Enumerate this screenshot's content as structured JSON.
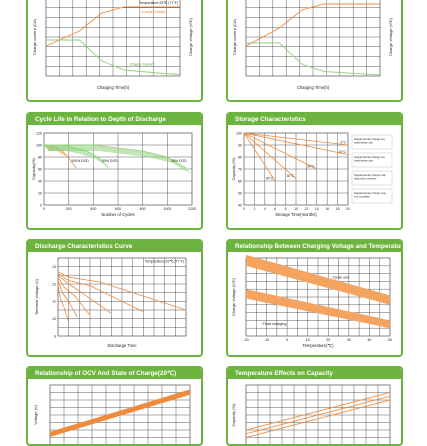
{
  "colors": {
    "panel_green": "#6db33f",
    "orange": "#f08a3c",
    "orange_band": "#f4a460",
    "green_band": "#8fd17a",
    "grid": "#333333",
    "header_text": "#ffffff"
  },
  "panels": [
    {
      "id": "charge-left",
      "title": "",
      "axis": {
        "x_label": "Charging Time(h)",
        "y_label": "Charge current (CA)",
        "y2_label": "Charge Voltage (V/C)"
      },
      "annotations": [
        "Temperature:25℃ (77°F)",
        "Charge Voltage",
        "Charge Current"
      ]
    },
    {
      "id": "charge-right",
      "title": "",
      "axis": {
        "x_label": "Charging Time(h)",
        "y_label": "Charge current (CA)",
        "y2_label": "Charge Voltage (V/C)"
      },
      "annotations": [
        "Temperature:25℃ (77°F)"
      ]
    },
    {
      "id": "cycle-life",
      "title": "Cycle Life in Relation to Depth of Discharge",
      "axis": {
        "x_label": "Number of Cycles",
        "y_label": "Capacity(%)"
      },
      "annotations": [
        "100% DOD",
        "50% DOD",
        "30% DOD"
      ]
    },
    {
      "id": "storage",
      "title": "Storage Characteristics",
      "axis": {
        "x_label": "Storage Time(months)",
        "y_label": "Capacity (%)"
      },
      "annotations": [
        "0°C",
        "10°C",
        "20°C",
        "30°C",
        "40°C"
      ],
      "notes": [
        "Supplementary charge required before use.",
        "Supplementary charge required before use.",
        "Supplementary charge may often fail to recover.",
        "Supplementary charge must be complete."
      ]
    },
    {
      "id": "discharge",
      "title": "Discharge Characteristics Curve",
      "axis": {
        "x_label": "Discharge Time",
        "y_label": "Terminal Voltage (V)"
      },
      "annotations": [
        "Temperature:25℃ (77°F)"
      ]
    },
    {
      "id": "charge-voltage-temp",
      "title": "Relationship Between Charging Voltage and Temperature",
      "axis": {
        "x_label": "Temperature(℃)",
        "y_label": "Charge Voltage (V/C)"
      },
      "annotations": [
        "Cycle use",
        "Float charging"
      ]
    },
    {
      "id": "ocv",
      "title": "Relationship of OCV And State of Charge(20℃)",
      "axis": {
        "x_label": "",
        "y_label": "Voltage (V)"
      },
      "annotations": []
    },
    {
      "id": "temp-capacity",
      "title": "Temperature Effects on Capacity",
      "axis": {
        "x_label": "",
        "y_label": "Capacity (%)"
      },
      "annotations": []
    }
  ],
  "chart_data": [
    {
      "type": "line",
      "id": "charge-left",
      "series": [
        {
          "name": "Charge Voltage",
          "x": [
            0,
            3,
            5,
            7,
            10,
            12
          ],
          "y": [
            1.0,
            1.5,
            2.1,
            2.3,
            2.3,
            2.3
          ]
        },
        {
          "name": "Charge Current",
          "x": [
            0,
            3,
            5,
            7,
            10,
            12
          ],
          "y": [
            1.2,
            1.2,
            0.5,
            0.2,
            0.1,
            0.05
          ]
        }
      ],
      "xlabel": "Charging Time(h)",
      "ylabel": "Charge current (CA)"
    },
    {
      "type": "line",
      "id": "charge-right",
      "series": [
        {
          "x": [
            0,
            3,
            5,
            7,
            10,
            12
          ],
          "y": [
            1.0,
            1.6,
            2.2,
            2.4,
            2.4,
            2.4
          ]
        },
        {
          "x": [
            0,
            3,
            5,
            7,
            10,
            12
          ],
          "y": [
            1.1,
            1.1,
            0.4,
            0.15,
            0.08,
            0.04
          ]
        }
      ],
      "xlabel": "Charging Time(h)",
      "ylabel": "Charge current (CA)"
    },
    {
      "type": "line",
      "id": "cycle-life",
      "x_ticks": [
        0,
        200,
        400,
        600,
        800,
        1000,
        1200
      ],
      "y_ticks": [
        0,
        20,
        40,
        60,
        80,
        100,
        120
      ],
      "xlim": [
        0,
        1200
      ],
      "ylim": [
        0,
        120
      ],
      "series": [
        {
          "name": "100% DOD",
          "x": [
            0,
            60,
            150,
            200,
            260
          ],
          "y": [
            100,
            100,
            90,
            78,
            62
          ]
        },
        {
          "name": "50% DOD",
          "x": [
            0,
            150,
            350,
            450,
            520
          ],
          "y": [
            100,
            100,
            90,
            78,
            62
          ]
        },
        {
          "name": "30% DOD",
          "x": [
            0,
            400,
            800,
            1000,
            1150
          ],
          "y": [
            100,
            100,
            90,
            80,
            62
          ]
        }
      ]
    },
    {
      "type": "line",
      "id": "storage",
      "x_ticks": [
        0,
        2,
        4,
        6,
        8,
        10,
        12,
        14,
        16,
        18,
        20
      ],
      "y_ticks": [
        40,
        50,
        60,
        70,
        80,
        90,
        100
      ],
      "xlim": [
        0,
        20
      ],
      "ylim": [
        40,
        100
      ],
      "series": [
        {
          "name": "0°C",
          "x": [
            0,
            20
          ],
          "y": [
            100,
            90
          ]
        },
        {
          "name": "10°C",
          "x": [
            0,
            20
          ],
          "y": [
            100,
            82
          ]
        },
        {
          "name": "20°C",
          "x": [
            0,
            14
          ],
          "y": [
            100,
            70
          ]
        },
        {
          "name": "30°C",
          "x": [
            0,
            10
          ],
          "y": [
            100,
            62
          ]
        },
        {
          "name": "40°C",
          "x": [
            0,
            6
          ],
          "y": [
            100,
            60
          ]
        }
      ]
    },
    {
      "type": "line",
      "id": "discharge",
      "y_ticks": [
        9,
        10,
        11,
        12,
        13
      ],
      "ylim": [
        9,
        13.5
      ],
      "series": [
        {
          "x": [
            0,
            5,
            20,
            60
          ],
          "y": [
            12.7,
            12.4,
            12.1,
            10.5
          ]
        },
        {
          "x": [
            0,
            5,
            15,
            40
          ],
          "y": [
            12.6,
            12.2,
            11.9,
            10.4
          ]
        },
        {
          "x": [
            0,
            5,
            10,
            25
          ],
          "y": [
            12.5,
            12.0,
            11.6,
            10.3
          ]
        },
        {
          "x": [
            0,
            3,
            8,
            15
          ],
          "y": [
            12.4,
            11.8,
            11.3,
            10.2
          ]
        },
        {
          "x": [
            0,
            2,
            5,
            9
          ],
          "y": [
            12.2,
            11.5,
            11.0,
            10.1
          ]
        },
        {
          "x": [
            0,
            1,
            3,
            5
          ],
          "y": [
            12.0,
            11.2,
            10.6,
            9.8
          ]
        }
      ]
    },
    {
      "type": "area",
      "id": "charge-voltage-temp",
      "x_ticks": [
        -20,
        -10,
        0,
        10,
        20,
        30,
        40,
        50
      ],
      "xlim": [
        -20,
        50
      ],
      "ylim": [
        2.1,
        2.6
      ],
      "series": [
        {
          "name": "Cycle use",
          "x": [
            -20,
            50
          ],
          "y_upper": [
            2.62,
            2.36
          ],
          "y_lower": [
            2.55,
            2.3
          ]
        },
        {
          "name": "Float charging",
          "x": [
            -20,
            50
          ],
          "y_upper": [
            2.4,
            2.2
          ],
          "y_lower": [
            2.34,
            2.15
          ]
        }
      ]
    },
    {
      "type": "line",
      "id": "ocv",
      "x": [
        0,
        100
      ],
      "y": [
        11.8,
        13.0
      ],
      "ylim": [
        11.5,
        13.2
      ]
    },
    {
      "type": "line",
      "id": "temp-capacity",
      "series": [
        {
          "x": [
            -20,
            50
          ],
          "y": [
            60,
            110
          ]
        },
        {
          "x": [
            -20,
            50
          ],
          "y": [
            55,
            105
          ]
        },
        {
          "x": [
            -20,
            50
          ],
          "y": [
            50,
            100
          ]
        }
      ]
    }
  ]
}
